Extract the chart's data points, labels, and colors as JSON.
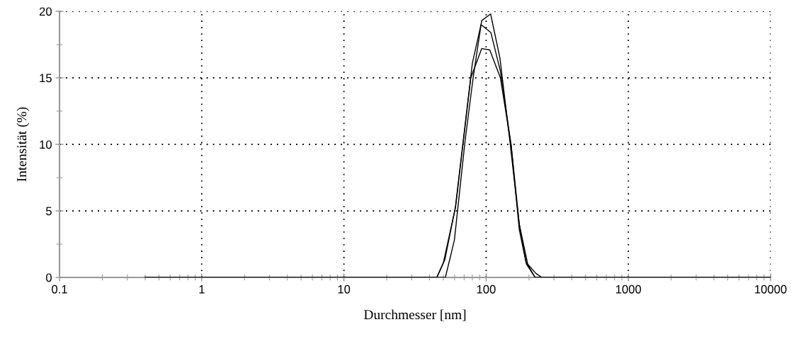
{
  "chart_data": {
    "type": "line",
    "xlabel": "Durchmesser [nm]",
    "ylabel": "Intensität (%)",
    "log": "x",
    "grid": true,
    "line_style": "solid",
    "marker": "none",
    "xlim": [
      0.1,
      10000
    ],
    "xticks": [
      0.1,
      1,
      10,
      100,
      1000,
      10000
    ],
    "ylim": [
      0,
      20
    ],
    "yticks": [
      0,
      {
        "value": 2.5,
        "label": null
      },
      5,
      {
        "value": 7.5,
        "label": null
      },
      10,
      {
        "value": 12.5,
        "label": null
      },
      15,
      {
        "value": 17.5,
        "label": null
      },
      20
    ],
    "series": [
      {
        "color": "#000000",
        "x": [
          0.4,
          51.7,
          59.8,
          71,
          81,
          93,
          107.5,
          125,
          147,
          171,
          196,
          224,
          246,
          10000
        ],
        "values": [
          0,
          0,
          2.8,
          10.2,
          15.0,
          19.3,
          19.8,
          16.5,
          10.2,
          4.0,
          1.0,
          0.3,
          0,
          0
        ]
      },
      {
        "color": "#000000",
        "x": [
          0.4,
          45,
          51.3,
          60.8,
          80,
          92,
          108,
          126,
          150,
          171,
          190,
          221,
          10000
        ],
        "values": [
          0,
          0,
          1.35,
          5.3,
          16.1,
          19.0,
          18.4,
          15.5,
          9.9,
          3.6,
          1.2,
          0,
          0
        ]
      },
      {
        "color": "#000000",
        "x": [
          0.4,
          45,
          50,
          61,
          78,
          93,
          106,
          126,
          150,
          171,
          192,
          221,
          10000
        ],
        "values": [
          0,
          0,
          1.1,
          5.3,
          15.0,
          17.2,
          17.1,
          15.0,
          9.9,
          4.0,
          1.0,
          0,
          0
        ]
      }
    ]
  }
}
